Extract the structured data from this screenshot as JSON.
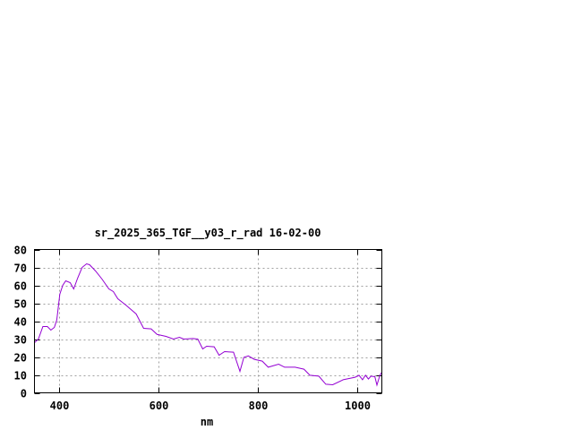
{
  "chart_data": {
    "type": "line",
    "title": "sr_2025_365_TGF__y03_r_rad 16-02-00",
    "xlabel": "nm",
    "ylabel": "",
    "xlim": [
      350,
      1050
    ],
    "ylim": [
      0,
      80
    ],
    "xticks": [
      400,
      600,
      800,
      1000
    ],
    "yticks": [
      0,
      10,
      20,
      30,
      40,
      50,
      60,
      70,
      80
    ],
    "grid": true,
    "line_color": "#9400d3",
    "series": [
      {
        "x": [
          350,
          358,
          367,
          376,
          383,
          390,
          395,
          401,
          407,
          413,
          422,
          429,
          437,
          446,
          455,
          461,
          473,
          486,
          500,
          509,
          518,
          534,
          555,
          570,
          585,
          597,
          615,
          630,
          642,
          651,
          669,
          679,
          689,
          697,
          712,
          722,
          733,
          751,
          764,
          772,
          781,
          793,
          809,
          821,
          842,
          854,
          875,
          893,
          905,
          923,
          937,
          951,
          972,
          996,
          1004,
          1011,
          1017,
          1023,
          1028,
          1036,
          1040,
          1046,
          1050
        ],
        "y": [
          28,
          30,
          37,
          37,
          35,
          36.5,
          40.6,
          55,
          60,
          62.5,
          61.5,
          58,
          64,
          70,
          72,
          71.5,
          68,
          63.5,
          58,
          56.5,
          52.5,
          49,
          44,
          36,
          35.7,
          32.6,
          31.5,
          30,
          31,
          30,
          30.3,
          30,
          24.5,
          26,
          25.7,
          21,
          23,
          22.7,
          12,
          19.8,
          20.6,
          18.7,
          17.7,
          14.3,
          16,
          14.3,
          14.3,
          13.2,
          9.8,
          9.3,
          4.8,
          4.5,
          7.3,
          8.7,
          9.8,
          7.3,
          9.8,
          7.7,
          9.3,
          9,
          4.3,
          9.8,
          11.5
        ]
      }
    ]
  }
}
